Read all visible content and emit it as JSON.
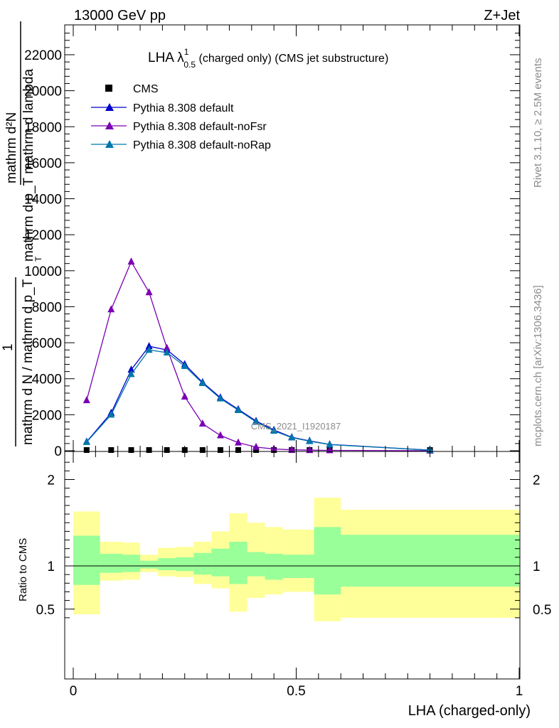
{
  "header": {
    "left": "13000 GeV pp",
    "right": "Z+Jet"
  },
  "side": {
    "rivet": "Rivet 3.1.10, ≥ 2.5M events",
    "mcplots": "mcplots.cern.ch [arXiv:1306.3436]"
  },
  "colors": {
    "data": "#000000",
    "default": "#0000cc",
    "noFsr": "#7a00b3",
    "noRap": "#0077aa",
    "band_inner": "#99ff99",
    "band_outer": "#ffff99"
  },
  "chart_data": [
    {
      "type": "line",
      "title": "LHA λ",
      "title_sup": "1",
      "title_sub": "0.5",
      "title_rest": " (charged only) (CMS jet substructure)",
      "ylabel_lines": [
        "mathrm d²N",
        "mathrm d p_T mathrm d lambda",
        "1",
        "mathrm d N / mathrm d p_T"
      ],
      "ylabel_sub": "T",
      "watermark": "CMS_2021_I1920187",
      "xlim": [
        0,
        1
      ],
      "ylim": [
        0,
        23500
      ],
      "yticks": [
        0,
        2000,
        4000,
        6000,
        8000,
        10000,
        12000,
        14000,
        16000,
        18000,
        20000,
        22000
      ],
      "ytick_labels": [
        "0",
        "2000",
        "4000",
        "6000",
        "8000",
        "10000",
        "12000",
        "14000",
        "16000",
        "18000",
        "20000",
        "22000"
      ],
      "legend_position": "top-left",
      "series": [
        {
          "name": "CMS",
          "key": "data",
          "marker": "square",
          "x": [
            0.03,
            0.085,
            0.13,
            0.17,
            0.21,
            0.25,
            0.29,
            0.33,
            0.37,
            0.41,
            0.45,
            0.49,
            0.53,
            0.575,
            0.8
          ],
          "y": [
            0,
            0,
            0,
            0,
            0,
            0,
            0,
            0,
            0,
            0,
            0,
            0,
            0,
            0,
            0
          ]
        },
        {
          "name": "Pythia 8.308 default",
          "key": "default",
          "marker": "triangle",
          "x": [
            0.03,
            0.085,
            0.13,
            0.17,
            0.21,
            0.25,
            0.29,
            0.33,
            0.37,
            0.41,
            0.45,
            0.49,
            0.53,
            0.575,
            0.8
          ],
          "y": [
            500,
            2100,
            4500,
            5800,
            5600,
            4800,
            3800,
            2950,
            2300,
            1650,
            1150,
            750,
            550,
            350,
            30
          ]
        },
        {
          "name": "Pythia 8.308 default-noFsr",
          "key": "noFsr",
          "marker": "triangle",
          "x": [
            0.03,
            0.085,
            0.13,
            0.17,
            0.21,
            0.25,
            0.29,
            0.33,
            0.37,
            0.41,
            0.45,
            0.49,
            0.53,
            0.575,
            0.8
          ],
          "y": [
            2800,
            7850,
            10500,
            8800,
            5700,
            3000,
            1500,
            850,
            450,
            200,
            100,
            50,
            30,
            20,
            0
          ]
        },
        {
          "name": "Pythia 8.308 default-noRap",
          "key": "noRap",
          "marker": "triangle",
          "x": [
            0.03,
            0.085,
            0.13,
            0.17,
            0.21,
            0.25,
            0.29,
            0.33,
            0.37,
            0.41,
            0.45,
            0.49,
            0.53,
            0.575,
            0.8
          ],
          "y": [
            480,
            2000,
            4250,
            5600,
            5450,
            4700,
            3750,
            2900,
            2250,
            1600,
            1100,
            730,
            530,
            340,
            30
          ]
        }
      ]
    },
    {
      "type": "area",
      "ylabel": "Ratio to CMS",
      "xlabel": "LHA (charged-only)",
      "xlim": [
        0,
        1
      ],
      "ylim": [
        0.35,
        2.25
      ],
      "xticks": [
        0,
        0.5,
        1
      ],
      "xtick_labels": [
        "0",
        "0.5",
        "1"
      ],
      "yticks": [
        0.5,
        1,
        2
      ],
      "ytick_labels": [
        "0.5",
        "1",
        "2"
      ],
      "reference": 1,
      "bins": [
        {
          "lo": 0.0,
          "hi": 0.06,
          "in_lo": 0.78,
          "in_hi": 1.35,
          "out_lo": 0.44,
          "out_hi": 1.63
        },
        {
          "lo": 0.06,
          "hi": 0.11,
          "in_lo": 0.92,
          "in_hi": 1.14,
          "out_lo": 0.83,
          "out_hi": 1.28
        },
        {
          "lo": 0.11,
          "hi": 0.15,
          "in_lo": 0.93,
          "in_hi": 1.13,
          "out_lo": 0.84,
          "out_hi": 1.27
        },
        {
          "lo": 0.15,
          "hi": 0.19,
          "in_lo": 0.97,
          "in_hi": 1.06,
          "out_lo": 0.93,
          "out_hi": 1.13
        },
        {
          "lo": 0.19,
          "hi": 0.23,
          "in_lo": 0.95,
          "in_hi": 1.09,
          "out_lo": 0.88,
          "out_hi": 1.21
        },
        {
          "lo": 0.23,
          "hi": 0.27,
          "in_lo": 0.94,
          "in_hi": 1.1,
          "out_lo": 0.87,
          "out_hi": 1.22
        },
        {
          "lo": 0.27,
          "hi": 0.31,
          "in_lo": 0.9,
          "in_hi": 1.15,
          "out_lo": 0.79,
          "out_hi": 1.28
        },
        {
          "lo": 0.31,
          "hi": 0.35,
          "in_lo": 0.88,
          "in_hi": 1.2,
          "out_lo": 0.74,
          "out_hi": 1.4
        },
        {
          "lo": 0.35,
          "hi": 0.39,
          "in_lo": 0.79,
          "in_hi": 1.28,
          "out_lo": 0.47,
          "out_hi": 1.61
        },
        {
          "lo": 0.39,
          "hi": 0.43,
          "in_lo": 0.88,
          "in_hi": 1.16,
          "out_lo": 0.63,
          "out_hi": 1.5
        },
        {
          "lo": 0.43,
          "hi": 0.47,
          "in_lo": 0.84,
          "in_hi": 1.14,
          "out_lo": 0.67,
          "out_hi": 1.45
        },
        {
          "lo": 0.47,
          "hi": 0.54,
          "in_lo": 0.86,
          "in_hi": 1.13,
          "out_lo": 0.7,
          "out_hi": 1.42
        },
        {
          "lo": 0.54,
          "hi": 0.6,
          "in_lo": 0.67,
          "in_hi": 1.45,
          "out_lo": 0.36,
          "out_hi": 1.79
        },
        {
          "lo": 0.6,
          "hi": 1.0,
          "in_lo": 0.76,
          "in_hi": 1.36,
          "out_lo": 0.4,
          "out_hi": 1.65
        }
      ]
    }
  ]
}
